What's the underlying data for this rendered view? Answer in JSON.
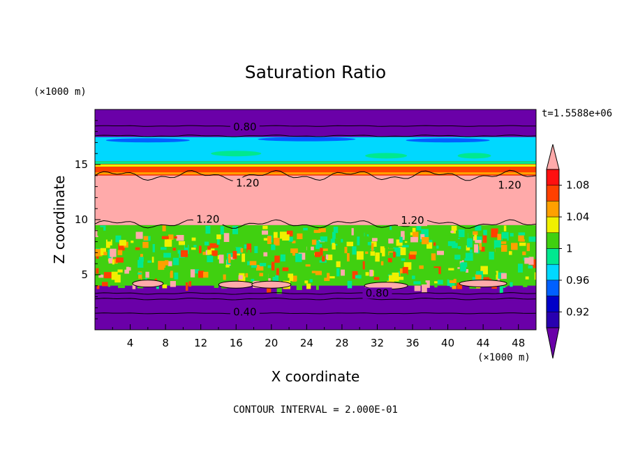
{
  "chart_data": {
    "type": "heatmap",
    "title": "Saturation Ratio",
    "xlabel": "X coordinate",
    "ylabel": "Z coordinate",
    "x_unit": "(×1000 m)",
    "y_unit": "(×1000 m)",
    "time_label": "t=1.5588e+06",
    "footer": "CONTOUR INTERVAL = 2.000E-01",
    "xlim": [
      0,
      50
    ],
    "ylim": [
      0,
      20
    ],
    "x_ticks": [
      4,
      8,
      12,
      16,
      20,
      24,
      28,
      32,
      36,
      40,
      44,
      48
    ],
    "y_ticks": [
      5,
      10,
      15
    ],
    "colorbar": {
      "ticks": [
        "1.08",
        "1.04",
        "1",
        "0.96",
        "0.92"
      ],
      "tick_values": [
        1.08,
        1.04,
        1.0,
        0.96,
        0.92
      ],
      "levels": [
        0.9,
        0.92,
        0.94,
        0.96,
        0.98,
        1.0,
        1.02,
        1.04,
        1.06,
        1.08,
        1.1
      ],
      "colors": [
        "#6a00a8",
        "#2800b0",
        "#0000c8",
        "#0060ff",
        "#00d8ff",
        "#00e890",
        "#40d010",
        "#f0f000",
        "#ffa000",
        "#ff4000",
        "#ff1010",
        "#ffaaaa"
      ]
    },
    "contour_labels": [
      {
        "text": "0.80",
        "x": 17.0,
        "z": 18.3
      },
      {
        "text": "1.20",
        "x": 17.3,
        "z": 13.2
      },
      {
        "text": "1.20",
        "x": 47.0,
        "z": 13.0
      },
      {
        "text": "1.20",
        "x": 12.8,
        "z": 9.9
      },
      {
        "text": "1.20",
        "x": 36.0,
        "z": 9.8
      },
      {
        "text": "0.80",
        "x": 32.0,
        "z": 3.2
      },
      {
        "text": "0.40",
        "x": 17.0,
        "z": 1.5
      }
    ],
    "bands": [
      {
        "z": [
          18.5,
          20.0
        ],
        "value": 0.4
      },
      {
        "z": [
          17.5,
          18.5
        ],
        "value": 0.8
      },
      {
        "z": [
          15.3,
          17.5
        ],
        "value": 0.96
      },
      {
        "z": [
          14.0,
          15.3
        ],
        "value": 1.06
      },
      {
        "z": [
          9.5,
          14.0
        ],
        "value": 1.2
      },
      {
        "z": [
          4.0,
          9.5
        ],
        "value": 1.0
      },
      {
        "z": [
          3.2,
          4.0
        ],
        "value": 0.8
      },
      {
        "z": [
          0.0,
          3.2
        ],
        "value": 0.4
      }
    ]
  }
}
